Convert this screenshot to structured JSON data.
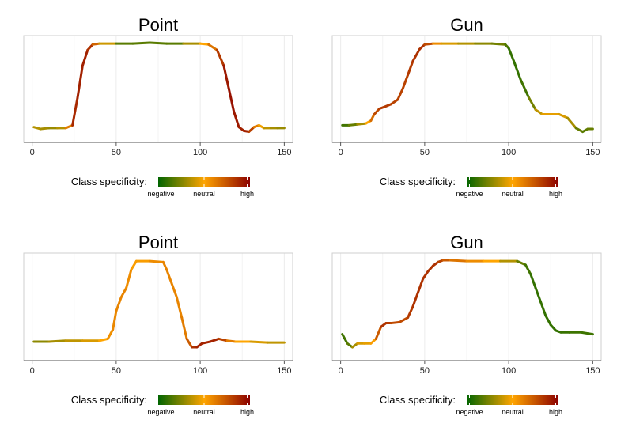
{
  "specificity_colors": [
    "#006400",
    "#FFA500",
    "#8B0000"
  ],
  "legend": {
    "label": "Class specificity:",
    "tick_labels": [
      "negative",
      "neutral",
      "high"
    ]
  },
  "chart_data": [
    {
      "type": "line",
      "title": "Point",
      "xlim": [
        -5,
        155
      ],
      "xticks": [
        0,
        50,
        100,
        150
      ],
      "ylim": [
        0,
        1
      ],
      "grid": "vertical",
      "x": [
        1,
        5,
        10,
        15,
        20,
        24,
        27,
        30,
        33,
        36,
        40,
        50,
        60,
        70,
        80,
        90,
        100,
        105,
        110,
        114,
        117,
        120,
        123,
        126,
        129,
        132,
        135,
        138,
        142,
        146,
        150
      ],
      "y": [
        0.08,
        0.06,
        0.07,
        0.07,
        0.07,
        0.1,
        0.4,
        0.75,
        0.92,
        0.98,
        0.99,
        0.99,
        0.99,
        1.0,
        0.99,
        0.99,
        0.99,
        0.98,
        0.92,
        0.75,
        0.5,
        0.25,
        0.08,
        0.04,
        0.03,
        0.08,
        0.1,
        0.07,
        0.07,
        0.07,
        0.07
      ],
      "specificity": [
        0.35,
        0.35,
        0.3,
        0.3,
        0.4,
        0.85,
        0.9,
        0.9,
        0.9,
        0.8,
        0.6,
        0.2,
        0.15,
        0.2,
        0.15,
        0.2,
        0.45,
        0.55,
        0.75,
        0.9,
        0.95,
        0.95,
        0.9,
        0.9,
        0.9,
        0.7,
        0.55,
        0.4,
        0.35,
        0.3,
        0.3
      ],
      "legend": "bottom"
    },
    {
      "type": "line",
      "title": "Gun",
      "xlim": [
        -5,
        155
      ],
      "xticks": [
        0,
        50,
        100,
        150
      ],
      "ylim": [
        0,
        1
      ],
      "grid": "vertical",
      "x": [
        1,
        5,
        10,
        15,
        18,
        20,
        23,
        26,
        30,
        34,
        37,
        40,
        43,
        47,
        50,
        55,
        60,
        70,
        80,
        90,
        98,
        100,
        103,
        107,
        112,
        116,
        120,
        125,
        130,
        135,
        140,
        144,
        147,
        150
      ],
      "y": [
        0.1,
        0.1,
        0.11,
        0.12,
        0.15,
        0.22,
        0.28,
        0.3,
        0.33,
        0.38,
        0.5,
        0.65,
        0.8,
        0.93,
        0.98,
        0.99,
        0.99,
        0.99,
        0.99,
        0.99,
        0.98,
        0.94,
        0.8,
        0.6,
        0.4,
        0.27,
        0.22,
        0.22,
        0.22,
        0.18,
        0.07,
        0.03,
        0.06,
        0.06
      ],
      "specificity": [
        0.1,
        0.15,
        0.25,
        0.4,
        0.6,
        0.75,
        0.8,
        0.85,
        0.8,
        0.8,
        0.8,
        0.8,
        0.85,
        0.85,
        0.85,
        0.7,
        0.45,
        0.4,
        0.3,
        0.25,
        0.2,
        0.1,
        0.1,
        0.1,
        0.15,
        0.3,
        0.45,
        0.45,
        0.45,
        0.4,
        0.25,
        0.15,
        0.2,
        0.2
      ],
      "legend": "bottom"
    },
    {
      "type": "line",
      "title": "Point",
      "xlim": [
        -5,
        155
      ],
      "xticks": [
        0,
        50,
        100,
        150
      ],
      "ylim": [
        0,
        1
      ],
      "grid": "vertical",
      "x": [
        1,
        10,
        20,
        30,
        40,
        45,
        48,
        50,
        53,
        56,
        59,
        62,
        70,
        78,
        80,
        83,
        86,
        89,
        92,
        95,
        98,
        101,
        106,
        111,
        116,
        121,
        130,
        140,
        150
      ],
      "y": [
        0.12,
        0.12,
        0.13,
        0.13,
        0.13,
        0.15,
        0.25,
        0.45,
        0.6,
        0.7,
        0.9,
        0.99,
        0.99,
        0.98,
        0.9,
        0.75,
        0.6,
        0.38,
        0.15,
        0.06,
        0.06,
        0.1,
        0.12,
        0.15,
        0.13,
        0.12,
        0.12,
        0.11,
        0.11
      ],
      "specificity": [
        0.25,
        0.3,
        0.35,
        0.4,
        0.45,
        0.55,
        0.58,
        0.6,
        0.6,
        0.6,
        0.55,
        0.5,
        0.55,
        0.6,
        0.6,
        0.6,
        0.6,
        0.6,
        0.65,
        0.8,
        0.9,
        0.9,
        0.88,
        0.9,
        0.7,
        0.55,
        0.45,
        0.4,
        0.35
      ],
      "legend": "bottom"
    },
    {
      "type": "line",
      "title": "Gun",
      "xlim": [
        -5,
        155
      ],
      "xticks": [
        0,
        50,
        100,
        150
      ],
      "ylim": [
        0,
        1
      ],
      "grid": "vertical",
      "x": [
        1,
        4,
        7,
        10,
        14,
        18,
        21,
        24,
        27,
        30,
        35,
        40,
        43,
        46,
        49,
        52,
        55,
        58,
        61,
        65,
        75,
        85,
        95,
        105,
        110,
        113,
        116,
        119,
        122,
        125,
        128,
        131,
        136,
        143,
        150
      ],
      "y": [
        0.2,
        0.1,
        0.06,
        0.1,
        0.1,
        0.1,
        0.15,
        0.28,
        0.32,
        0.32,
        0.33,
        0.38,
        0.5,
        0.65,
        0.8,
        0.88,
        0.94,
        0.98,
        1.0,
        1.0,
        0.99,
        0.99,
        0.99,
        0.99,
        0.95,
        0.85,
        0.7,
        0.55,
        0.4,
        0.3,
        0.24,
        0.22,
        0.22,
        0.22,
        0.2
      ],
      "specificity": [
        0.15,
        0.1,
        0.25,
        0.4,
        0.45,
        0.45,
        0.6,
        0.85,
        0.85,
        0.8,
        0.75,
        0.8,
        0.85,
        0.85,
        0.85,
        0.85,
        0.85,
        0.85,
        0.75,
        0.7,
        0.6,
        0.55,
        0.45,
        0.25,
        0.15,
        0.1,
        0.1,
        0.1,
        0.1,
        0.1,
        0.1,
        0.1,
        0.12,
        0.12,
        0.12
      ],
      "legend": "bottom"
    }
  ]
}
